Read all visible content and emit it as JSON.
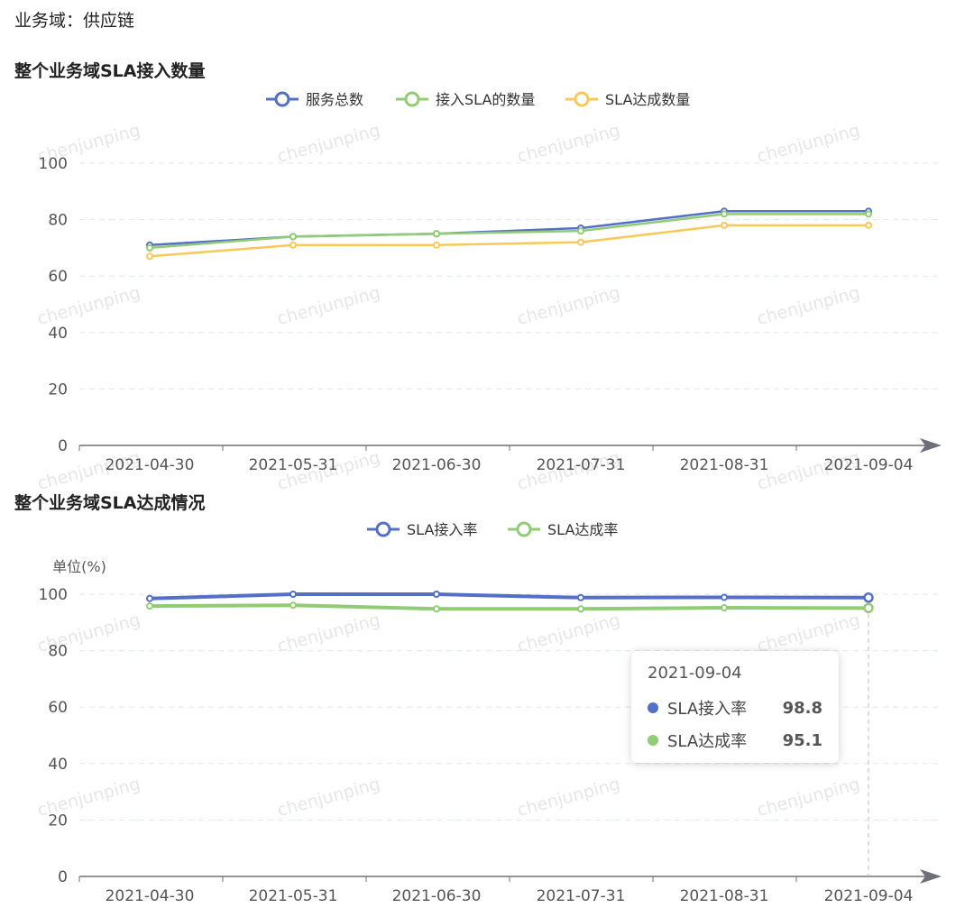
{
  "domain_label": "业务域：供应链",
  "watermark": "chenjunping",
  "charts": [
    {
      "title": "整个业务域SLA接入数量",
      "legend": [
        "服务总数",
        "接入SLA的数量",
        "SLA达成数量"
      ]
    },
    {
      "title": "整个业务域SLA达成情况",
      "legend": [
        "SLA接入率",
        "SLA达成率"
      ],
      "unit_label": "单位(%)"
    }
  ],
  "tooltip": {
    "date": "2021-09-04",
    "rows": [
      {
        "name": "SLA接入率",
        "value": "98.8",
        "color": "#5470c6"
      },
      {
        "name": "SLA达成率",
        "value": "95.1",
        "color": "#91cc75"
      }
    ]
  },
  "chart_data": [
    {
      "type": "line",
      "title": "整个业务域SLA接入数量",
      "categories": [
        "2021-04-30",
        "2021-05-31",
        "2021-06-30",
        "2021-07-31",
        "2021-08-31",
        "2021-09-04"
      ],
      "ylim": [
        0,
        100
      ],
      "yticks": [
        0,
        20,
        40,
        60,
        80,
        100
      ],
      "grid": true,
      "legend_position": "top-center",
      "series": [
        {
          "name": "服务总数",
          "color": "#5470c6",
          "values": [
            71,
            74,
            75,
            77,
            83,
            83
          ]
        },
        {
          "name": "接入SLA的数量",
          "color": "#91cc75",
          "values": [
            70,
            74,
            75,
            76,
            82,
            82
          ]
        },
        {
          "name": "SLA达成数量",
          "color": "#fac858",
          "values": [
            67,
            71,
            71,
            72,
            78,
            78
          ]
        }
      ]
    },
    {
      "type": "line",
      "title": "整个业务域SLA达成情况",
      "ylabel": "单位(%)",
      "categories": [
        "2021-04-30",
        "2021-05-31",
        "2021-06-30",
        "2021-07-31",
        "2021-08-31",
        "2021-09-04"
      ],
      "ylim": [
        0,
        100
      ],
      "yticks": [
        0,
        20,
        40,
        60,
        80,
        100
      ],
      "grid": true,
      "legend_position": "top-center",
      "series": [
        {
          "name": "SLA接入率",
          "color": "#5470c6",
          "values": [
            98.5,
            100,
            100,
            98.8,
            98.9,
            98.8
          ]
        },
        {
          "name": "SLA达成率",
          "color": "#91cc75",
          "values": [
            95.8,
            96.1,
            94.8,
            94.8,
            95.2,
            95.1
          ]
        }
      ]
    }
  ]
}
